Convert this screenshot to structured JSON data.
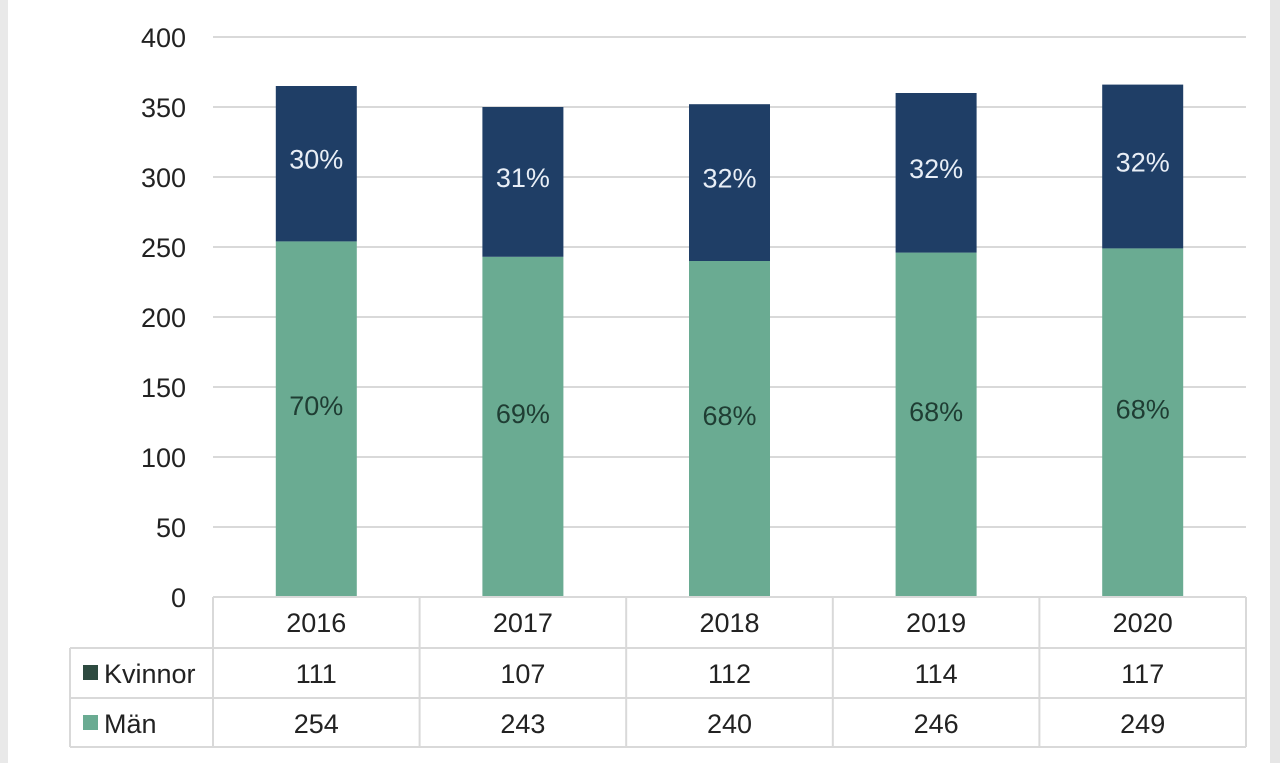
{
  "chart_data": {
    "type": "bar",
    "stacked": true,
    "categories": [
      "2016",
      "2017",
      "2018",
      "2019",
      "2020"
    ],
    "series": [
      {
        "name": "Män",
        "values": [
          254,
          243,
          240,
          246,
          249
        ],
        "percent_labels": [
          "70%",
          "69%",
          "68%",
          "68%",
          "68%"
        ],
        "color": "#6aab92",
        "label_color": "#1f3d33"
      },
      {
        "name": "Kvinnor",
        "values": [
          111,
          107,
          112,
          114,
          117
        ],
        "percent_labels": [
          "30%",
          "31%",
          "32%",
          "32%",
          "32%"
        ],
        "color": "#1f3e66",
        "label_color": "#e8eef6",
        "legend_color": "#2d4a40"
      }
    ],
    "table_rows": [
      "Kvinnor",
      "Män"
    ],
    "y_ticks": [
      "0",
      "50",
      "100",
      "150",
      "200",
      "250",
      "300",
      "350",
      "400"
    ],
    "ylim": [
      0,
      400
    ],
    "grid": true,
    "legend": "data table",
    "gridline_color": "#d9d9d9",
    "table_border_color": "#d9d9d9"
  }
}
